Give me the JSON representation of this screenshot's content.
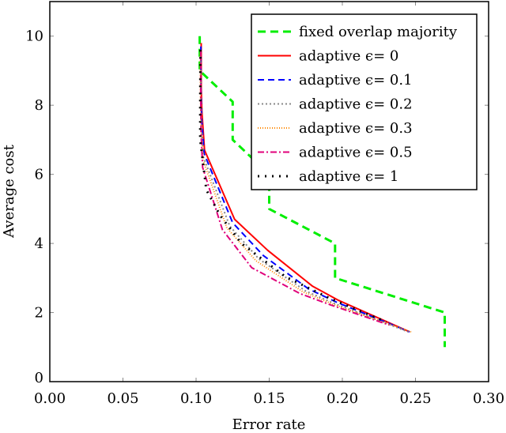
{
  "chart_data": {
    "type": "line",
    "title": "",
    "xlabel": "Error rate",
    "ylabel": "Average cost",
    "xlim": [
      0,
      0.3
    ],
    "ylim": [
      0,
      11
    ],
    "xticks": [
      "0.00",
      "0.05",
      "0.10",
      "0.15",
      "0.20",
      "0.25",
      "0.30"
    ],
    "xtick_values": [
      0,
      0.05,
      0.1,
      0.15,
      0.2,
      0.25,
      0.3
    ],
    "yticks": [
      "0",
      "2",
      "4",
      "6",
      "8",
      "10"
    ],
    "ytick_values": [
      0,
      2,
      4,
      6,
      8,
      10
    ],
    "grid": false,
    "legend_position": "top-right",
    "series": [
      {
        "name": "fixed overlap majority",
        "color": "#00ee00",
        "dash": "10,6",
        "width": 3,
        "x": [
          0.1025,
          0.1025,
          0.125,
          0.125,
          0.15,
          0.15,
          0.195,
          0.195,
          0.27,
          0.27
        ],
        "y": [
          10,
          9,
          8.1,
          7,
          6,
          5,
          4,
          3,
          2,
          1
        ]
      },
      {
        "name": "adaptive ϵ= 0",
        "color": "#ff0000",
        "dash": "",
        "width": 2,
        "x": [
          0.1035,
          0.1035,
          0.104,
          0.1058,
          0.1263,
          0.149,
          0.1797,
          0.1975,
          0.246
        ],
        "y": [
          9.8,
          8.5,
          7.8,
          6.7,
          4.7,
          3.8,
          2.76,
          2.35,
          1.44
        ]
      },
      {
        "name": "adaptive ϵ= 0.1",
        "color": "#0000ff",
        "dash": "8,5",
        "width": 2,
        "x": [
          0.1033,
          0.1033,
          0.1038,
          0.1055,
          0.125,
          0.146,
          0.177,
          0.196,
          0.246
        ],
        "y": [
          9.7,
          8.5,
          7.6,
          6.6,
          4.6,
          3.65,
          2.68,
          2.3,
          1.44
        ]
      },
      {
        "name": "adaptive ϵ= 0.2",
        "color": "#888888",
        "dash": "2,3",
        "width": 2,
        "x": [
          0.1032,
          0.1032,
          0.1036,
          0.105,
          0.123,
          0.143,
          0.175,
          0.194,
          0.245
        ],
        "y": [
          9.6,
          8.5,
          7.4,
          6.5,
          4.5,
          3.55,
          2.62,
          2.27,
          1.44
        ]
      },
      {
        "name": "adaptive ϵ= 0.3",
        "color": "#ff8800",
        "dash": "1,2",
        "width": 2,
        "x": [
          0.103,
          0.103,
          0.1034,
          0.1048,
          0.121,
          0.141,
          0.173,
          0.193,
          0.247
        ],
        "y": [
          9.5,
          8.5,
          7.3,
          6.4,
          4.45,
          3.5,
          2.6,
          2.25,
          1.44
        ]
      },
      {
        "name": "adaptive ϵ= 0.5",
        "color": "#e0007a",
        "dash": "8,3,2,3",
        "width": 2,
        "x": [
          0.1032,
          0.1032,
          0.1034,
          0.1045,
          0.118,
          0.138,
          0.171,
          0.192,
          0.232
        ],
        "y": [
          9.6,
          8.3,
          7.2,
          6.2,
          4.4,
          3.3,
          2.55,
          2.22,
          1.64
        ]
      },
      {
        "name": "adaptive ϵ= 1",
        "color": "#000000",
        "dash": "2,7",
        "width": 3,
        "x": [
          0.103,
          0.1028,
          0.1028,
          0.107,
          0.1166,
          0.131,
          0.161,
          0.192,
          0.23
        ],
        "y": [
          9.6,
          8.0,
          7.0,
          5.55,
          4.8,
          4.0,
          3.04,
          2.4,
          1.73
        ]
      }
    ]
  }
}
